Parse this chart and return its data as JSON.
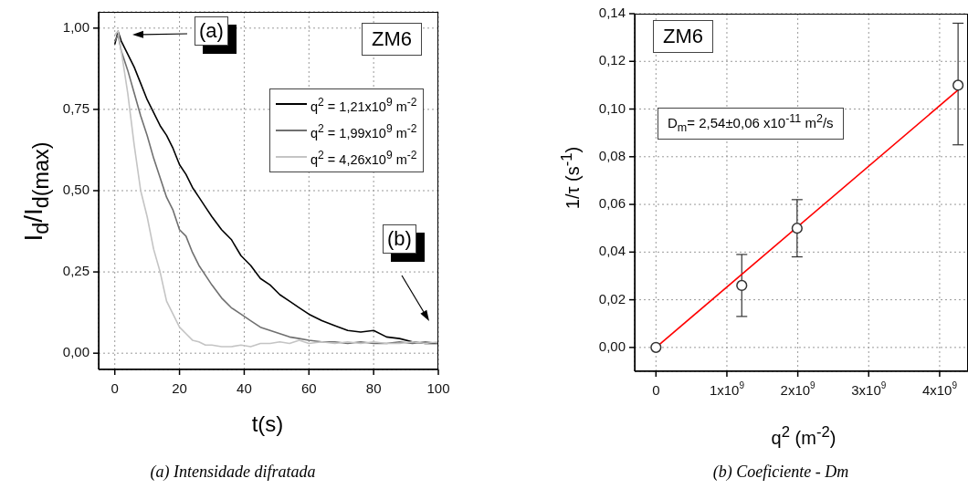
{
  "chart_data": [
    {
      "type": "line",
      "xlabel": "t(s)",
      "ylabel": "I$_{d}$/I$_{d(max)}$",
      "x": [
        0,
        1,
        2,
        4,
        6,
        8,
        10,
        12,
        14,
        16,
        18,
        20,
        22,
        24,
        26,
        28,
        30,
        33,
        36,
        39,
        42,
        45,
        48,
        51,
        54,
        57,
        60,
        64,
        68,
        72,
        76,
        80,
        84,
        88,
        92,
        96,
        100
      ],
      "series": [
        {
          "name": "q$^{2}$ = 1,21x10$^{9}$ m$^{-2}$",
          "color": "#000000",
          "values": [
            0.95,
            0.99,
            0.96,
            0.92,
            0.88,
            0.83,
            0.78,
            0.74,
            0.7,
            0.67,
            0.63,
            0.58,
            0.55,
            0.51,
            0.48,
            0.45,
            0.42,
            0.38,
            0.35,
            0.3,
            0.27,
            0.23,
            0.21,
            0.18,
            0.16,
            0.14,
            0.12,
            0.1,
            0.085,
            0.07,
            0.065,
            0.07,
            0.05,
            0.045,
            0.035,
            0.03,
            0.03
          ]
        },
        {
          "name": "q$^{2}$ = 1,99x10$^{9}$ m$^{-2}$",
          "color": "#707070",
          "values": [
            0.96,
            0.98,
            0.93,
            0.87,
            0.8,
            0.73,
            0.67,
            0.6,
            0.54,
            0.48,
            0.44,
            0.38,
            0.36,
            0.31,
            0.27,
            0.24,
            0.21,
            0.17,
            0.14,
            0.12,
            0.1,
            0.08,
            0.07,
            0.06,
            0.05,
            0.045,
            0.04,
            0.035,
            0.035,
            0.03,
            0.035,
            0.03,
            0.03,
            0.035,
            0.03,
            0.035,
            0.03
          ]
        },
        {
          "name": "q$^{2}$ = 4,26x10$^{9}$ m$^{-2}$",
          "color": "#c4c4c4",
          "values": [
            0.98,
            0.99,
            0.93,
            0.8,
            0.64,
            0.5,
            0.42,
            0.32,
            0.25,
            0.16,
            0.12,
            0.08,
            0.06,
            0.04,
            0.035,
            0.025,
            0.025,
            0.02,
            0.02,
            0.025,
            0.02,
            0.03,
            0.03,
            0.035,
            0.03,
            0.04,
            0.03,
            0.035,
            0.03,
            0.035,
            0.03,
            0.035,
            0.03,
            0.03,
            0.035,
            0.03,
            0.035
          ]
        }
      ],
      "xlim": [
        -5,
        100
      ],
      "xticks": [
        0,
        20,
        40,
        60,
        80,
        100
      ],
      "ylim": [
        -0.05,
        1.05
      ],
      "yticks": [
        {
          "value": 0,
          "label": "0,00"
        },
        {
          "value": 0.25,
          "label": "0,25"
        },
        {
          "value": 0.5,
          "label": "0,50"
        },
        {
          "value": 0.75,
          "label": "0,75"
        },
        {
          "value": 1,
          "label": "1,00"
        }
      ],
      "grid": true,
      "legend": "top right",
      "marker": "none",
      "annotations": [
        "(a)",
        "ZM6",
        "(b)",
        "(a) Intensidade difratada"
      ]
    },
    {
      "type": "scatter",
      "xlabel": "q$^{2}$ (m$^{-2}$)",
      "ylabel": "1/τ (s$^{-1}$)",
      "x": [
        0,
        1210000000,
        1990000000,
        4260000000
      ],
      "series": [
        {
          "color": "#333333",
          "values": [
            0,
            0.026,
            0.05,
            0.11
          ],
          "errors": [
            null,
            [
              0.013,
              0.039
            ],
            [
              0.038,
              0.062
            ],
            [
              0.085,
              0.136
            ]
          ]
        },
        {
          "type": "line",
          "color": "#ff0000",
          "marker": "none",
          "x": [
            0,
            4260000000
          ],
          "values": [
            0,
            0.108
          ]
        }
      ],
      "xlim": [
        -300000000,
        4400000000
      ],
      "xticks": [
        {
          "value": 0,
          "label": "0"
        },
        {
          "value": 1000000000,
          "label": "1x10$^{9}$"
        },
        {
          "value": 2000000000,
          "label": "2x10$^{9}$"
        },
        {
          "value": 3000000000,
          "label": "3x10$^{9}$"
        },
        {
          "value": 4000000000,
          "label": "4x10$^{9}$"
        }
      ],
      "ylim": [
        -0.01,
        0.14
      ],
      "yticks": [
        {
          "value": 0,
          "label": "0,00"
        },
        {
          "value": 0.02,
          "label": "0,02"
        },
        {
          "value": 0.04,
          "label": "0,04"
        },
        {
          "value": 0.06,
          "label": "0,06"
        },
        {
          "value": 0.08,
          "label": "0,08"
        },
        {
          "value": 0.1,
          "label": "0,10"
        },
        {
          "value": 0.12,
          "label": "0,12"
        },
        {
          "value": 0.14,
          "label": "0,14"
        }
      ],
      "grid": true,
      "marker": "circle",
      "annotations": [
        "ZM6",
        "D$_{m}$= 2,54±0,06 x10$^{-11}$ m$^{2}$/s",
        "(b) Coeficiente - Dm"
      ]
    }
  ]
}
